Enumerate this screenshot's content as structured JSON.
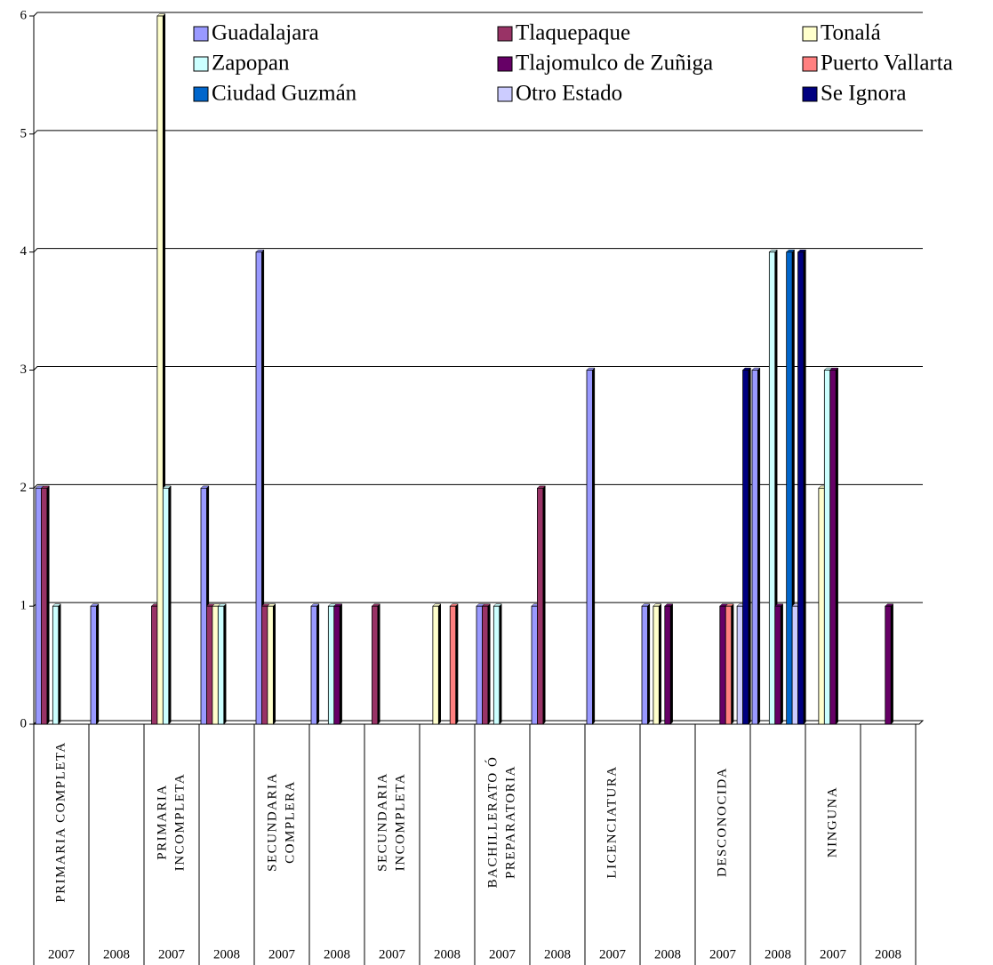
{
  "chart_data": {
    "type": "bar",
    "groups": [
      [
        "PRIMARIA COMPLETA"
      ],
      [
        "PRIMARIA",
        "INCOMPLETA"
      ],
      [
        "SECUNDARIA",
        "COMPLERA"
      ],
      [
        "SECUNDARIA",
        "INCOMPLETA"
      ],
      [
        "BACHILLERATO Ó",
        "PREPARATORIA"
      ],
      [
        "LICENCIATURA"
      ],
      [
        "DESCONOCIDA"
      ],
      [
        "NINGUNA"
      ]
    ],
    "categories": [
      "2007",
      "2008",
      "2007",
      "2008",
      "2007",
      "2008",
      "2007",
      "2008",
      "2007",
      "2008",
      "2007",
      "2008",
      "2007",
      "2008",
      "2007",
      "2008"
    ],
    "series": [
      {
        "name": "Guadalajara",
        "color": "#9999ff",
        "values": [
          2,
          1,
          0,
          2,
          4,
          1,
          0,
          0,
          1,
          1,
          3,
          1,
          0,
          3,
          0,
          0
        ]
      },
      {
        "name": "Tlaquepaque",
        "color": "#993366",
        "values": [
          2,
          0,
          1,
          1,
          1,
          0,
          1,
          0,
          1,
          2,
          0,
          0,
          0,
          0,
          0,
          0
        ]
      },
      {
        "name": "Tonalá",
        "color": "#ffffcc",
        "values": [
          0,
          0,
          6,
          1,
          1,
          0,
          0,
          1,
          0,
          0,
          0,
          1,
          0,
          0,
          2,
          0
        ]
      },
      {
        "name": "Zapopan",
        "color": "#ccffff",
        "values": [
          1,
          0,
          2,
          1,
          0,
          1,
          0,
          0,
          1,
          0,
          0,
          0,
          0,
          4,
          3,
          0
        ]
      },
      {
        "name": "Tlajomulco de Zuñiga",
        "color": "#660066",
        "values": [
          0,
          0,
          0,
          0,
          0,
          1,
          0,
          0,
          0,
          0,
          0,
          1,
          1,
          1,
          3,
          1
        ]
      },
      {
        "name": "Puerto Vallarta",
        "color": "#ff8080",
        "values": [
          0,
          0,
          0,
          0,
          0,
          0,
          0,
          1,
          0,
          0,
          0,
          0,
          1,
          0,
          0,
          0
        ]
      },
      {
        "name": "Ciudad Guzmán",
        "color": "#0066cc",
        "values": [
          0,
          0,
          0,
          0,
          0,
          0,
          0,
          0,
          0,
          0,
          0,
          0,
          0,
          4,
          0,
          0
        ]
      },
      {
        "name": "Otro Estado",
        "color": "#ccccff",
        "values": [
          0,
          0,
          0,
          0,
          0,
          0,
          0,
          0,
          0,
          0,
          0,
          0,
          1,
          1,
          0,
          0
        ]
      },
      {
        "name": "Se Ignora",
        "color": "#000080",
        "values": [
          0,
          0,
          0,
          0,
          0,
          0,
          0,
          0,
          0,
          0,
          0,
          0,
          3,
          4,
          0,
          0
        ]
      }
    ],
    "ylim": [
      0,
      6
    ],
    "yticks": [
      0,
      1,
      2,
      3,
      4,
      5,
      6
    ],
    "grid": true
  }
}
